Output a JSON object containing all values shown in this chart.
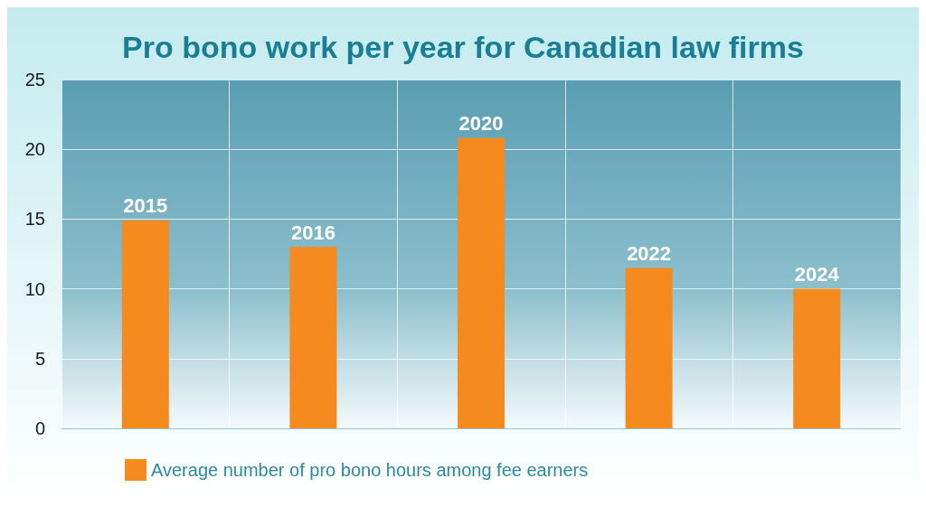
{
  "chart_data": {
    "type": "bar",
    "title": "Pro bono work per year for Canadian law firms",
    "categories": [
      "2015",
      "2016",
      "2020",
      "2022",
      "2024"
    ],
    "series": [
      {
        "name": "Average number of pro bono hours among fee earners",
        "color": "#f58a1f",
        "values": [
          14.9,
          13.0,
          20.8,
          11.5,
          10.0
        ]
      }
    ],
    "ylim": [
      0,
      25
    ],
    "yticks": [
      0,
      5,
      10,
      15,
      20,
      25
    ],
    "grid": true,
    "legend": "bottom left"
  }
}
